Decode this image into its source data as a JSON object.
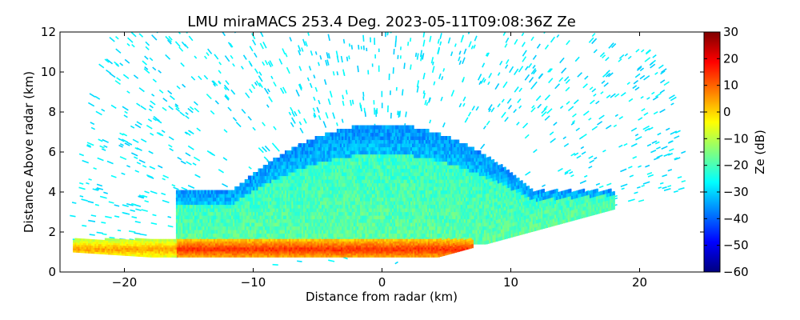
{
  "chart_data": {
    "type": "heatmap",
    "title": "LMU miraMACS 253.4 Deg. 2023-05-11T09:08:36Z  Ze",
    "xlabel": "Distance from radar (km)",
    "ylabel": "Distance Above radar  (km)",
    "xlim": [
      -25,
      25
    ],
    "ylim": [
      0,
      12
    ],
    "x_ticks": [
      -20,
      -10,
      0,
      10,
      20
    ],
    "y_ticks": [
      0,
      2,
      4,
      6,
      8,
      10,
      12
    ],
    "colorbar": {
      "label": "Ze (dB)",
      "range": [
        -60,
        30
      ],
      "ticks": [
        -60,
        -50,
        -40,
        -30,
        -20,
        -10,
        0,
        10,
        20,
        30
      ],
      "colormap": "jet"
    },
    "scan": {
      "elevation_deg": 253.4,
      "max_range_km": 24,
      "horizon_left_height_km": 1.0,
      "horizon_right_height_km": 4.2
    },
    "features": [
      {
        "name": "melting layer bright band",
        "height_km": 1.1,
        "x_range_km": [
          -24,
          7
        ],
        "ze_db": 15
      },
      {
        "name": "stratiform cloud",
        "height_range_km": [
          1.5,
          7.5
        ],
        "x_range_km": [
          -16,
          18
        ],
        "ze_db": -18
      },
      {
        "name": "cloud top",
        "height_km": 7.5,
        "x_range_km": [
          -8,
          8
        ],
        "ze_db": -35
      },
      {
        "name": "noise speckle",
        "height_range_km": [
          0,
          12
        ],
        "ze_db": -28
      }
    ],
    "grid": false
  }
}
